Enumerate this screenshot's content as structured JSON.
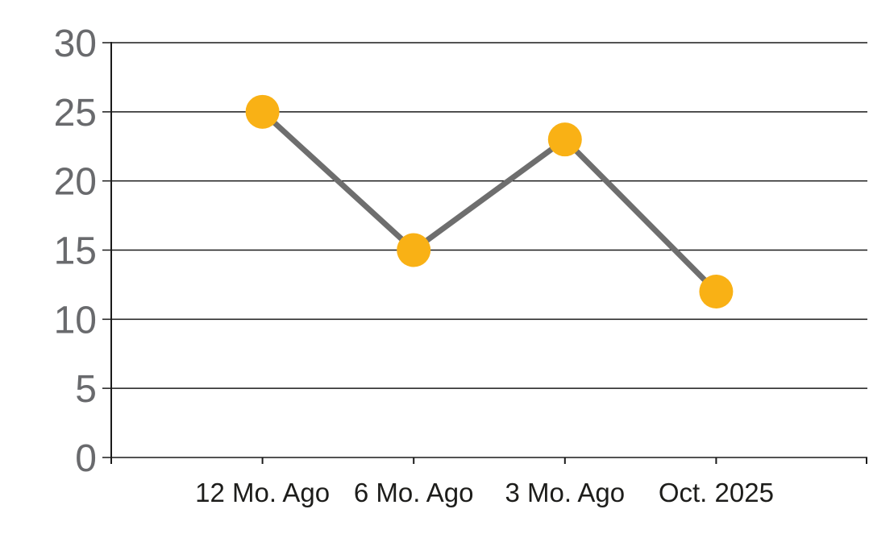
{
  "chart_data": {
    "type": "line",
    "title": "",
    "categories": [
      "12 Mo. Ago",
      "6 Mo. Ago",
      "3 Mo. Ago",
      "Oct. 2025"
    ],
    "values": [
      25,
      15,
      23,
      12
    ],
    "yticks": [
      0,
      5,
      10,
      15,
      20,
      25,
      30
    ],
    "ylim": [
      0,
      30
    ],
    "xlabel": "",
    "ylabel": "",
    "legend": "none",
    "grid": "horizontal",
    "colors": {
      "marker": "#F9B115",
      "line": "#6E6E6E",
      "grid_and_axis": "#1A1A1A",
      "ytick_labels": "#696A6D",
      "xtick_labels": "#1D1D1B",
      "background": "#FFFFFF"
    }
  }
}
